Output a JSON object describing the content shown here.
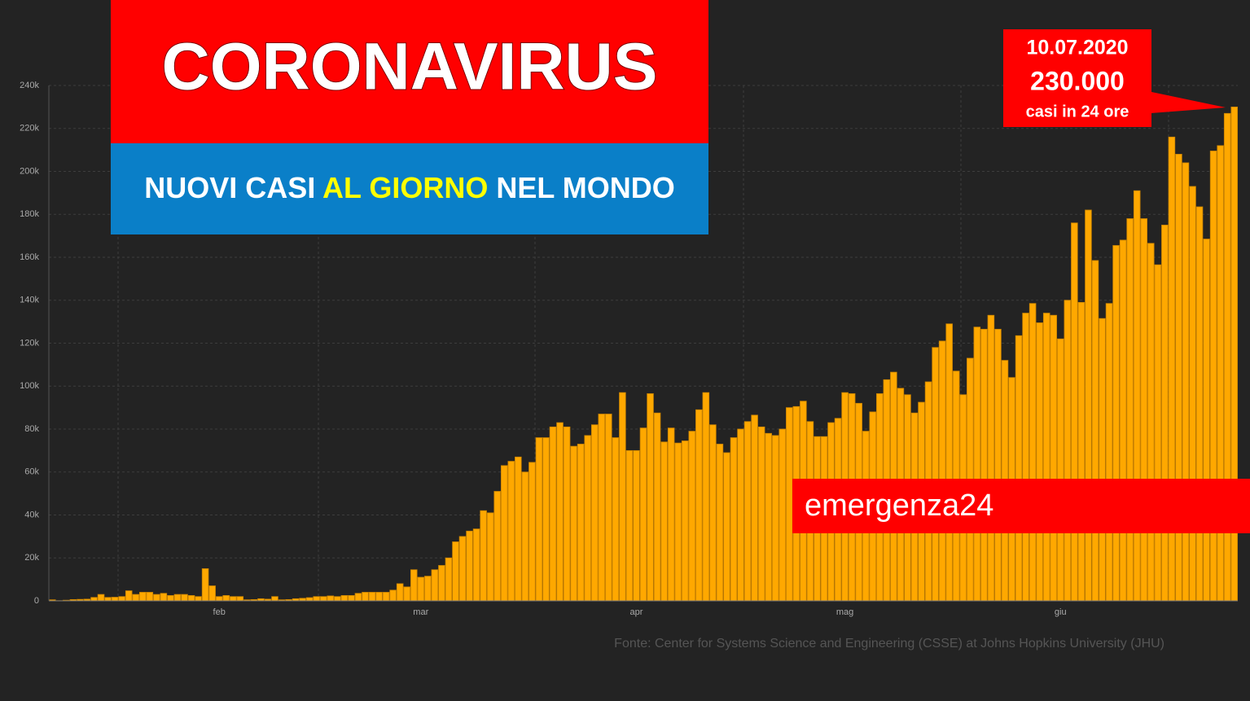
{
  "chart_data": {
    "type": "bar",
    "title": "CORONAVIRUS",
    "subtitle": [
      "NUOVI CASI",
      "AL GIORNO",
      "NEL MONDO"
    ],
    "annotation": [
      "10.07.2020",
      "230.000",
      "casi in 24 ore"
    ],
    "brand": "emergenza24",
    "source": "Fonte: Center for Systems Science and Engineering (CSSE) at Johns Hopkins University (JHU)",
    "color": "#ffa800",
    "grid": true,
    "ylim": [
      0,
      240000
    ],
    "yticks": [
      0,
      {
        "value": 20000,
        "label": "20k"
      },
      {
        "value": 40000,
        "label": "40k"
      },
      {
        "value": 60000,
        "label": "60k"
      },
      {
        "value": 80000,
        "label": "80k"
      },
      {
        "value": 100000,
        "label": "100k"
      },
      {
        "value": 120000,
        "label": "120k"
      },
      {
        "value": 140000,
        "label": "140k"
      },
      {
        "value": 160000,
        "label": "160k"
      },
      {
        "value": 180000,
        "label": "180k"
      },
      {
        "value": 200000,
        "label": "200k"
      },
      {
        "value": 220000,
        "label": "220k"
      },
      {
        "value": 240000,
        "label": "240k"
      }
    ],
    "categories": [
      null,
      null,
      null,
      null,
      null,
      null,
      null,
      null,
      null,
      null,
      null,
      null,
      null,
      null,
      null,
      null,
      null,
      null,
      null,
      null,
      null,
      null,
      null,
      null,
      "feb",
      null,
      null,
      null,
      null,
      null,
      null,
      null,
      null,
      null,
      null,
      null,
      null,
      null,
      null,
      null,
      null,
      null,
      null,
      null,
      null,
      null,
      null,
      null,
      null,
      null,
      null,
      null,
      null,
      "mar",
      null,
      null,
      null,
      null,
      null,
      null,
      null,
      null,
      null,
      null,
      null,
      null,
      null,
      null,
      null,
      null,
      null,
      null,
      null,
      null,
      null,
      null,
      null,
      null,
      null,
      null,
      null,
      null,
      null,
      null,
      "apr",
      null,
      null,
      null,
      null,
      null,
      null,
      null,
      null,
      null,
      null,
      null,
      null,
      null,
      null,
      null,
      null,
      null,
      null,
      null,
      null,
      null,
      null,
      null,
      null,
      null,
      null,
      null,
      null,
      null,
      "mag",
      null,
      null,
      null,
      null,
      null,
      null,
      null,
      null,
      null,
      null,
      null,
      null,
      null,
      null,
      null,
      null,
      null,
      null,
      null,
      null,
      null,
      null,
      null,
      null,
      null,
      null,
      null,
      null,
      null,
      null,
      "giu",
      null,
      null,
      null,
      null,
      null,
      null,
      null,
      null,
      null,
      null,
      null,
      null,
      null,
      null,
      null,
      null,
      null,
      null,
      null,
      null,
      null,
      null,
      null,
      null,
      null
    ],
    "values": [
      500,
      100,
      300,
      600,
      700,
      800,
      1600,
      3000,
      1600,
      1700,
      2000,
      4700,
      3000,
      4000,
      4000,
      3000,
      3500,
      2500,
      3000,
      3000,
      2500,
      2000,
      15000,
      7000,
      2000,
      2500,
      2000,
      2000,
      500,
      600,
      1000,
      800,
      2000,
      500,
      600,
      1000,
      1200,
      1500,
      2000,
      2000,
      2300,
      2000,
      2500,
      2500,
      3500,
      4000,
      4000,
      4000,
      4000,
      5000,
      8000,
      6500,
      14500,
      11000,
      11500,
      14500,
      16500,
      20000,
      27500,
      30000,
      32500,
      33500,
      42000,
      41000,
      51000,
      63000,
      65000,
      67000,
      60000,
      64500,
      76000,
      76000,
      81000,
      83000,
      81000,
      72000,
      73000,
      77000,
      82000,
      87000,
      87000,
      76000,
      97000,
      70000,
      70000,
      80500,
      96500,
      87500,
      74000,
      80500,
      73500,
      74500,
      79000,
      89000,
      97000,
      82000,
      73000,
      69000,
      76000,
      80000,
      83500,
      86500,
      81000,
      78000,
      77000,
      80000,
      90000,
      90500,
      93000,
      83500,
      76500,
      76500,
      83000,
      85000,
      97000,
      96500,
      92000,
      79000,
      88000,
      96500,
      103000,
      106500,
      99000,
      96000,
      87500,
      92500,
      102000,
      118000,
      121000,
      129000,
      107000,
      96000,
      113000,
      127500,
      126500,
      133000,
      126500,
      112000,
      104000,
      123500,
      134000,
      138500,
      129500,
      134000,
      133000,
      122000,
      140000,
      176000,
      139000,
      182000,
      158500,
      131500,
      138500,
      165500,
      168000,
      178000,
      191000,
      178000,
      166500,
      156500,
      175000,
      216000,
      208000,
      204000,
      193000,
      183500,
      168500,
      209500,
      212000,
      227000,
      230000
    ]
  }
}
